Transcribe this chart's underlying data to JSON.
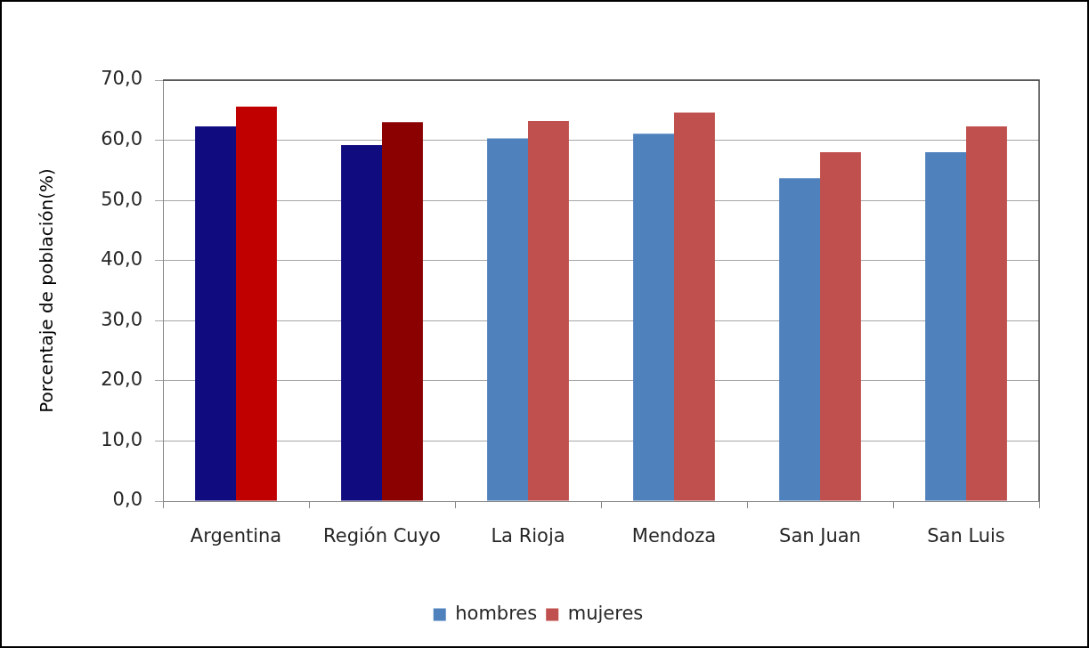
{
  "chart_data": {
    "type": "bar",
    "ylabel": "Porcentaje de población(%)",
    "categories": [
      "Argentina",
      "Región Cuyo",
      "La Rioja",
      "Mendoza",
      "San Juan",
      "San Luis"
    ],
    "series": [
      {
        "name": "hombres",
        "color": "#4f81bd",
        "colors": [
          "#110b80",
          "#110b80",
          "#4f81bd",
          "#4f81bd",
          "#4f81bd",
          "#4f81bd"
        ],
        "values": [
          62.3,
          59.2,
          60.3,
          61.1,
          53.7,
          58.0
        ]
      },
      {
        "name": "mujeres",
        "color": "#c0504d",
        "colors": [
          "#c00000",
          "#8b0000",
          "#c0504d",
          "#c0504d",
          "#c0504d",
          "#c0504d"
        ],
        "values": [
          65.6,
          63.0,
          63.2,
          64.6,
          58.0,
          62.3
        ]
      }
    ],
    "ylim": [
      0,
      70
    ],
    "yticks": [
      {
        "value": 0,
        "label": "0,0"
      },
      {
        "value": 10,
        "label": "10,0"
      },
      {
        "value": 20,
        "label": "20,0"
      },
      {
        "value": 30,
        "label": "30,0"
      },
      {
        "value": 40,
        "label": "40,0"
      },
      {
        "value": 50,
        "label": "50,0"
      },
      {
        "value": 60,
        "label": "60,0"
      },
      {
        "value": 70,
        "label": "70,0"
      }
    ],
    "grid": "y",
    "legend": "bottom"
  }
}
